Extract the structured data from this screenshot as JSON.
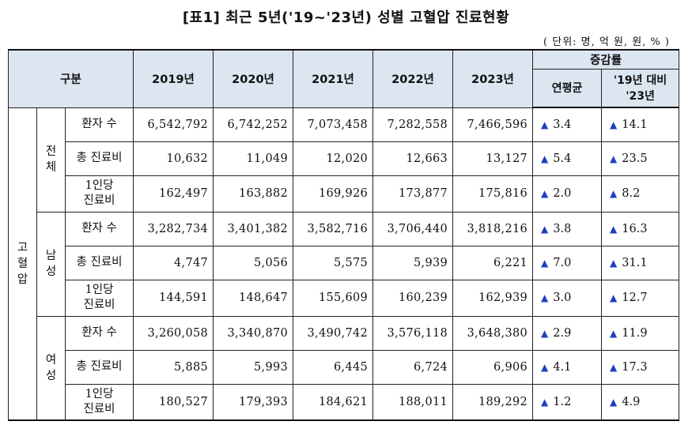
{
  "title": "[표1] 최근 5년('19~'23년) 성별 고혈압 진료현황",
  "unit": "( 단위: 명, 억 원, 원, % )",
  "header": {
    "category": "구분",
    "years": [
      "2019년",
      "2020년",
      "2021년",
      "2022년",
      "2023년"
    ],
    "change": "증감률",
    "cagr": "연평균",
    "vs_line1": "'19년 대비",
    "vs_line2": "'23년"
  },
  "disease": "고혈압",
  "groups": [
    {
      "name": "전체",
      "rows": [
        {
          "label": "환자 수",
          "label2": "",
          "values": [
            "6,542,792",
            "6,742,252",
            "7,073,458",
            "7,282,558",
            "7,466,596"
          ],
          "cagr": "3.4",
          "vs": "14.1"
        },
        {
          "label": "총 진료비",
          "label2": "",
          "values": [
            "10,632",
            "11,049",
            "12,020",
            "12,663",
            "13,127"
          ],
          "cagr": "5.4",
          "vs": "23.5"
        },
        {
          "label": "1인당",
          "label2": "진료비",
          "values": [
            "162,497",
            "163,882",
            "169,926",
            "173,877",
            "175,816"
          ],
          "cagr": "2.0",
          "vs": "8.2"
        }
      ]
    },
    {
      "name": "남성",
      "rows": [
        {
          "label": "환자 수",
          "label2": "",
          "values": [
            "3,282,734",
            "3,401,382",
            "3,582,716",
            "3,706,440",
            "3,818,216"
          ],
          "cagr": "3.8",
          "vs": "16.3"
        },
        {
          "label": "총 진료비",
          "label2": "",
          "values": [
            "4,747",
            "5,056",
            "5,575",
            "5,939",
            "6,221"
          ],
          "cagr": "7.0",
          "vs": "31.1"
        },
        {
          "label": "1인당",
          "label2": "진료비",
          "values": [
            "144,591",
            "148,647",
            "155,609",
            "160,239",
            "162,939"
          ],
          "cagr": "3.0",
          "vs": "12.7"
        }
      ]
    },
    {
      "name": "여성",
      "rows": [
        {
          "label": "환자 수",
          "label2": "",
          "values": [
            "3,260,058",
            "3,340,870",
            "3,490,742",
            "3,576,118",
            "3,648,380"
          ],
          "cagr": "2.9",
          "vs": "11.9"
        },
        {
          "label": "총 진료비",
          "label2": "",
          "values": [
            "5,885",
            "5,993",
            "6,445",
            "6,724",
            "6,906"
          ],
          "cagr": "4.1",
          "vs": "17.3"
        },
        {
          "label": "1인당",
          "label2": "진료비",
          "values": [
            "180,527",
            "179,393",
            "184,621",
            "188,011",
            "189,292"
          ],
          "cagr": "1.2",
          "vs": "4.9"
        }
      ]
    }
  ],
  "increase_symbol": "▲",
  "colors": {
    "header_bg": "#dce6f1",
    "triangle": "#1f3fbf"
  }
}
